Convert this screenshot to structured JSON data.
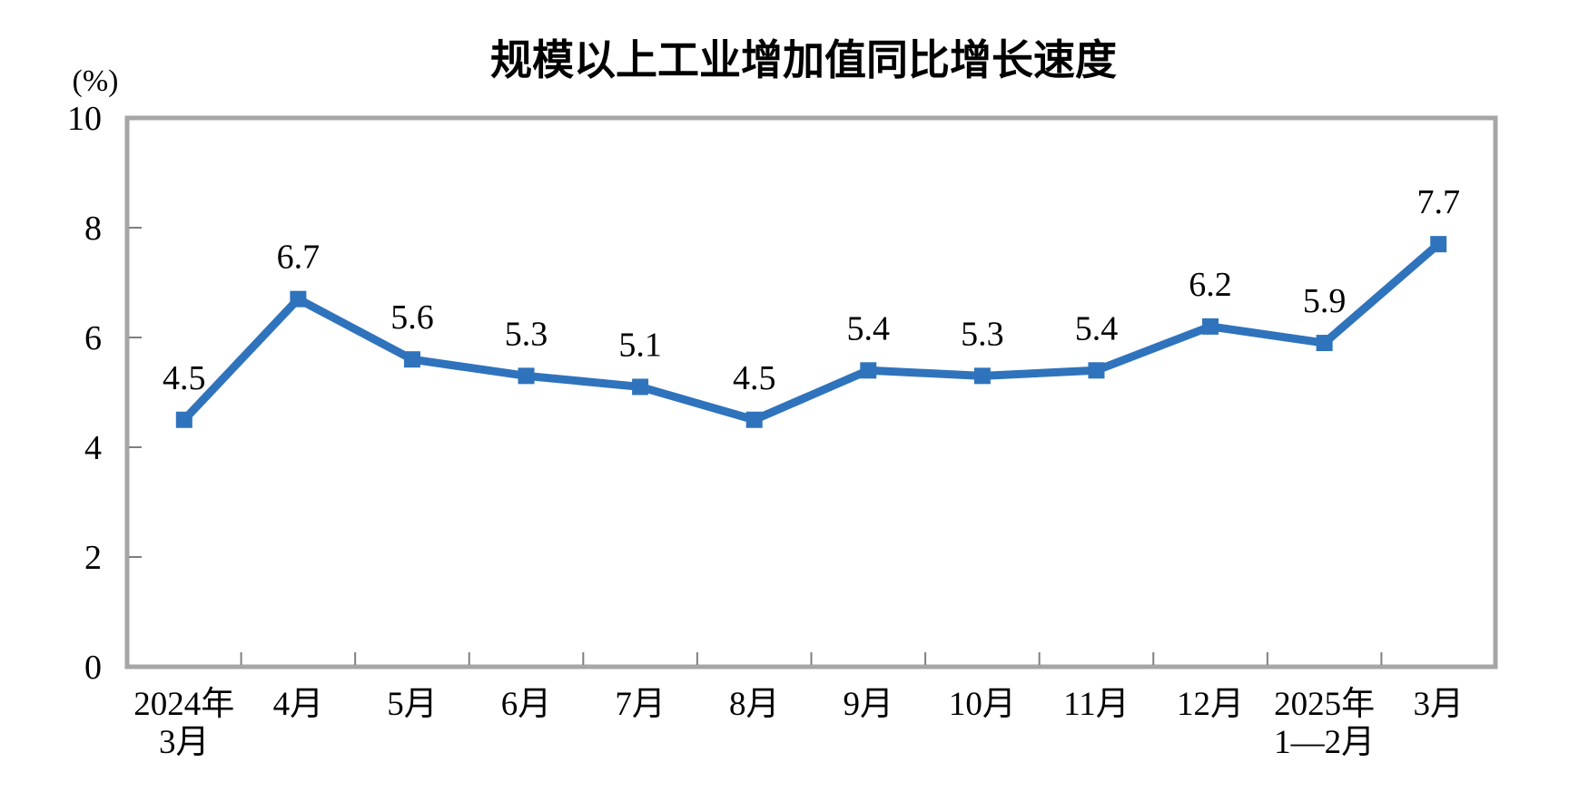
{
  "page": {
    "background": "#FFFFFF"
  },
  "chart_data": {
    "type": "line",
    "title": "规模以上工业增加值同比增长速度",
    "ylabel": "(%)",
    "xlabel": "",
    "categories": [
      "2024年\n3月",
      "4月",
      "5月",
      "6月",
      "7月",
      "8月",
      "9月",
      "10月",
      "11月",
      "12月",
      "2025年\n1—2月",
      "3月"
    ],
    "values": [
      4.5,
      6.7,
      5.6,
      5.3,
      5.1,
      4.5,
      5.4,
      5.3,
      5.4,
      6.2,
      5.9,
      7.7
    ],
    "data_labels": [
      "4.5",
      "6.7",
      "5.6",
      "5.3",
      "5.1",
      "4.5",
      "5.4",
      "5.3",
      "5.4",
      "6.2",
      "5.9",
      "7.7"
    ],
    "ylim": [
      0,
      10
    ],
    "yticks": [
      0,
      2,
      4,
      6,
      8,
      10
    ],
    "grid": false,
    "legend": "none",
    "line_color": "#2F73BC",
    "marker": "square",
    "axis_color": "#A6A6A6",
    "tick_color": "#7F7F7F",
    "text_color": "#000000"
  }
}
